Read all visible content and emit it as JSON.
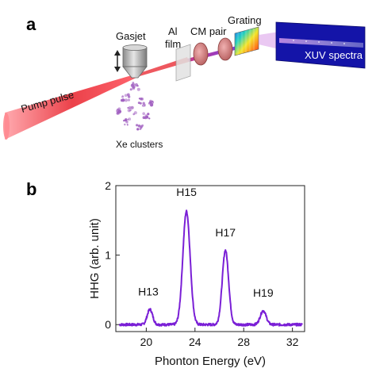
{
  "panel_a": {
    "letter": "a",
    "labels": {
      "gasjet": "Gasjet",
      "al_film_line1": "Al",
      "al_film_line2": "film",
      "cm_pair": "CM pair",
      "grating": "Grating",
      "pump_pulse": "Pump pulse",
      "xe_clusters": "Xe clusters",
      "xuv_spectra": "XUV spectra"
    },
    "colors": {
      "pump_beam": "#e8202a",
      "xuv_beam": "#8a2be2",
      "spectra_panel": "#1414a8",
      "cm_mirror": "#c46a6a",
      "nozzle": "#b8b8b8",
      "clusters": "#a05fc0"
    }
  },
  "panel_b": {
    "letter": "b",
    "chart_data": {
      "type": "line",
      "xlabel": "Phonton Energy (eV)",
      "ylabel": "HHG (arb. unit)",
      "xlim": [
        17.5,
        33
      ],
      "ylim": [
        -0.1,
        2.0
      ],
      "xticks": [
        20,
        24,
        28,
        32
      ],
      "yticks": [
        0,
        1,
        2
      ],
      "line_color": "#7a1fd6",
      "peaks": [
        {
          "label": "H13",
          "x": 20.3,
          "height": 0.22,
          "width": 0.22
        },
        {
          "label": "H15",
          "x": 23.3,
          "height": 1.63,
          "width": 0.3
        },
        {
          "label": "H17",
          "x": 26.5,
          "height": 1.07,
          "width": 0.26
        },
        {
          "label": "H19",
          "x": 29.6,
          "height": 0.2,
          "width": 0.24
        }
      ],
      "baseline": 0.0
    }
  }
}
